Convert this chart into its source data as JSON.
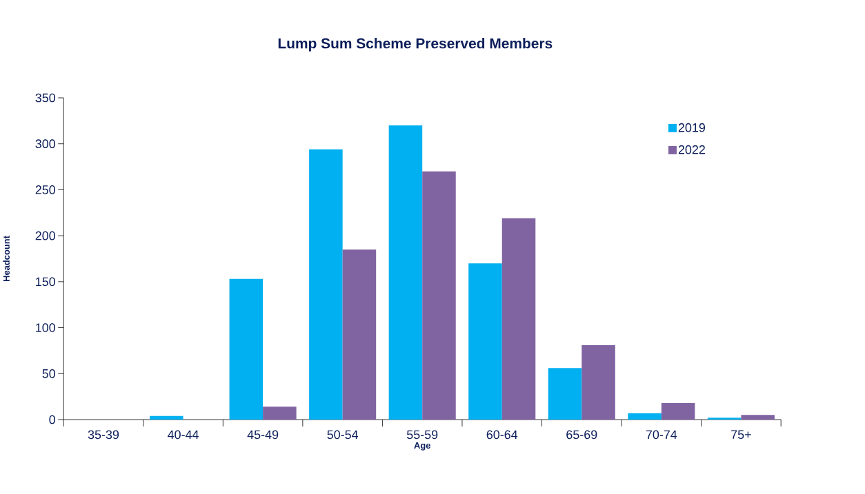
{
  "chart_data": {
    "type": "bar",
    "title": "Lump Sum Scheme Preserved Members",
    "xlabel": "Age",
    "ylabel": "Headcount",
    "categories": [
      "35-39",
      "40-44",
      "45-49",
      "50-54",
      "55-59",
      "60-64",
      "65-69",
      "70-74",
      "75+"
    ],
    "series": [
      {
        "name": "2019",
        "color": "#00b0f0",
        "values": [
          0,
          4,
          153,
          294,
          320,
          170,
          56,
          7,
          2
        ]
      },
      {
        "name": "2022",
        "color": "#8064a2",
        "values": [
          0,
          0,
          14,
          185,
          270,
          219,
          81,
          18,
          5
        ]
      }
    ],
    "ylim": [
      0,
      350
    ],
    "yticks": [
      0,
      50,
      100,
      150,
      200,
      250,
      300,
      350
    ],
    "grid": false,
    "legend": "top right"
  }
}
